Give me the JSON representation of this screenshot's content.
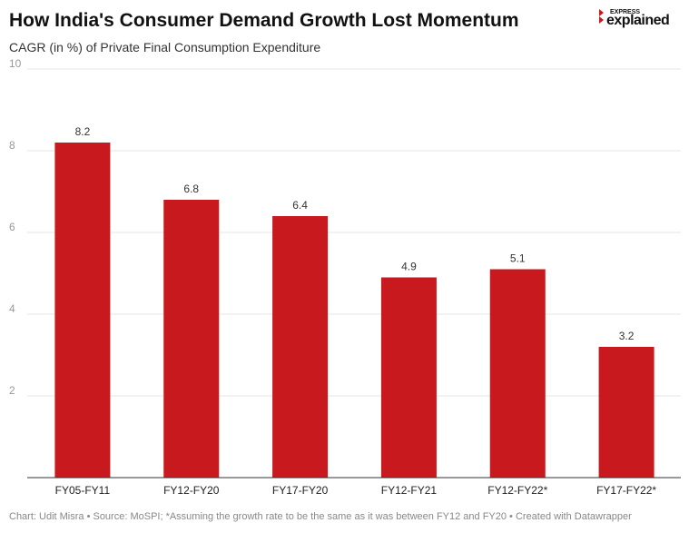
{
  "chart_data": {
    "type": "bar",
    "title": "How India's Consumer Demand Growth Lost Momentum",
    "subtitle": "CAGR (in %) of Private Final Consumption Expenditure",
    "categories": [
      "FY05-FY11",
      "FY12-FY20",
      "FY17-FY20",
      "FY12-FY21",
      "FY12-FY22*",
      "FY17-FY22*"
    ],
    "values": [
      8.2,
      6.8,
      6.4,
      4.9,
      5.1,
      3.2
    ],
    "color": "#c8191e",
    "ylim": [
      0,
      10
    ],
    "yticks": [
      2,
      4,
      6,
      8,
      10
    ],
    "grid": true,
    "footer": "Chart: Udit Misra • Source: MoSPI; *Assuming the growth rate to be the same as it was between FY12 and FY20 • Created with Datawrapper"
  },
  "logo": {
    "top": "EXPRESS",
    "bottom": "explained"
  }
}
